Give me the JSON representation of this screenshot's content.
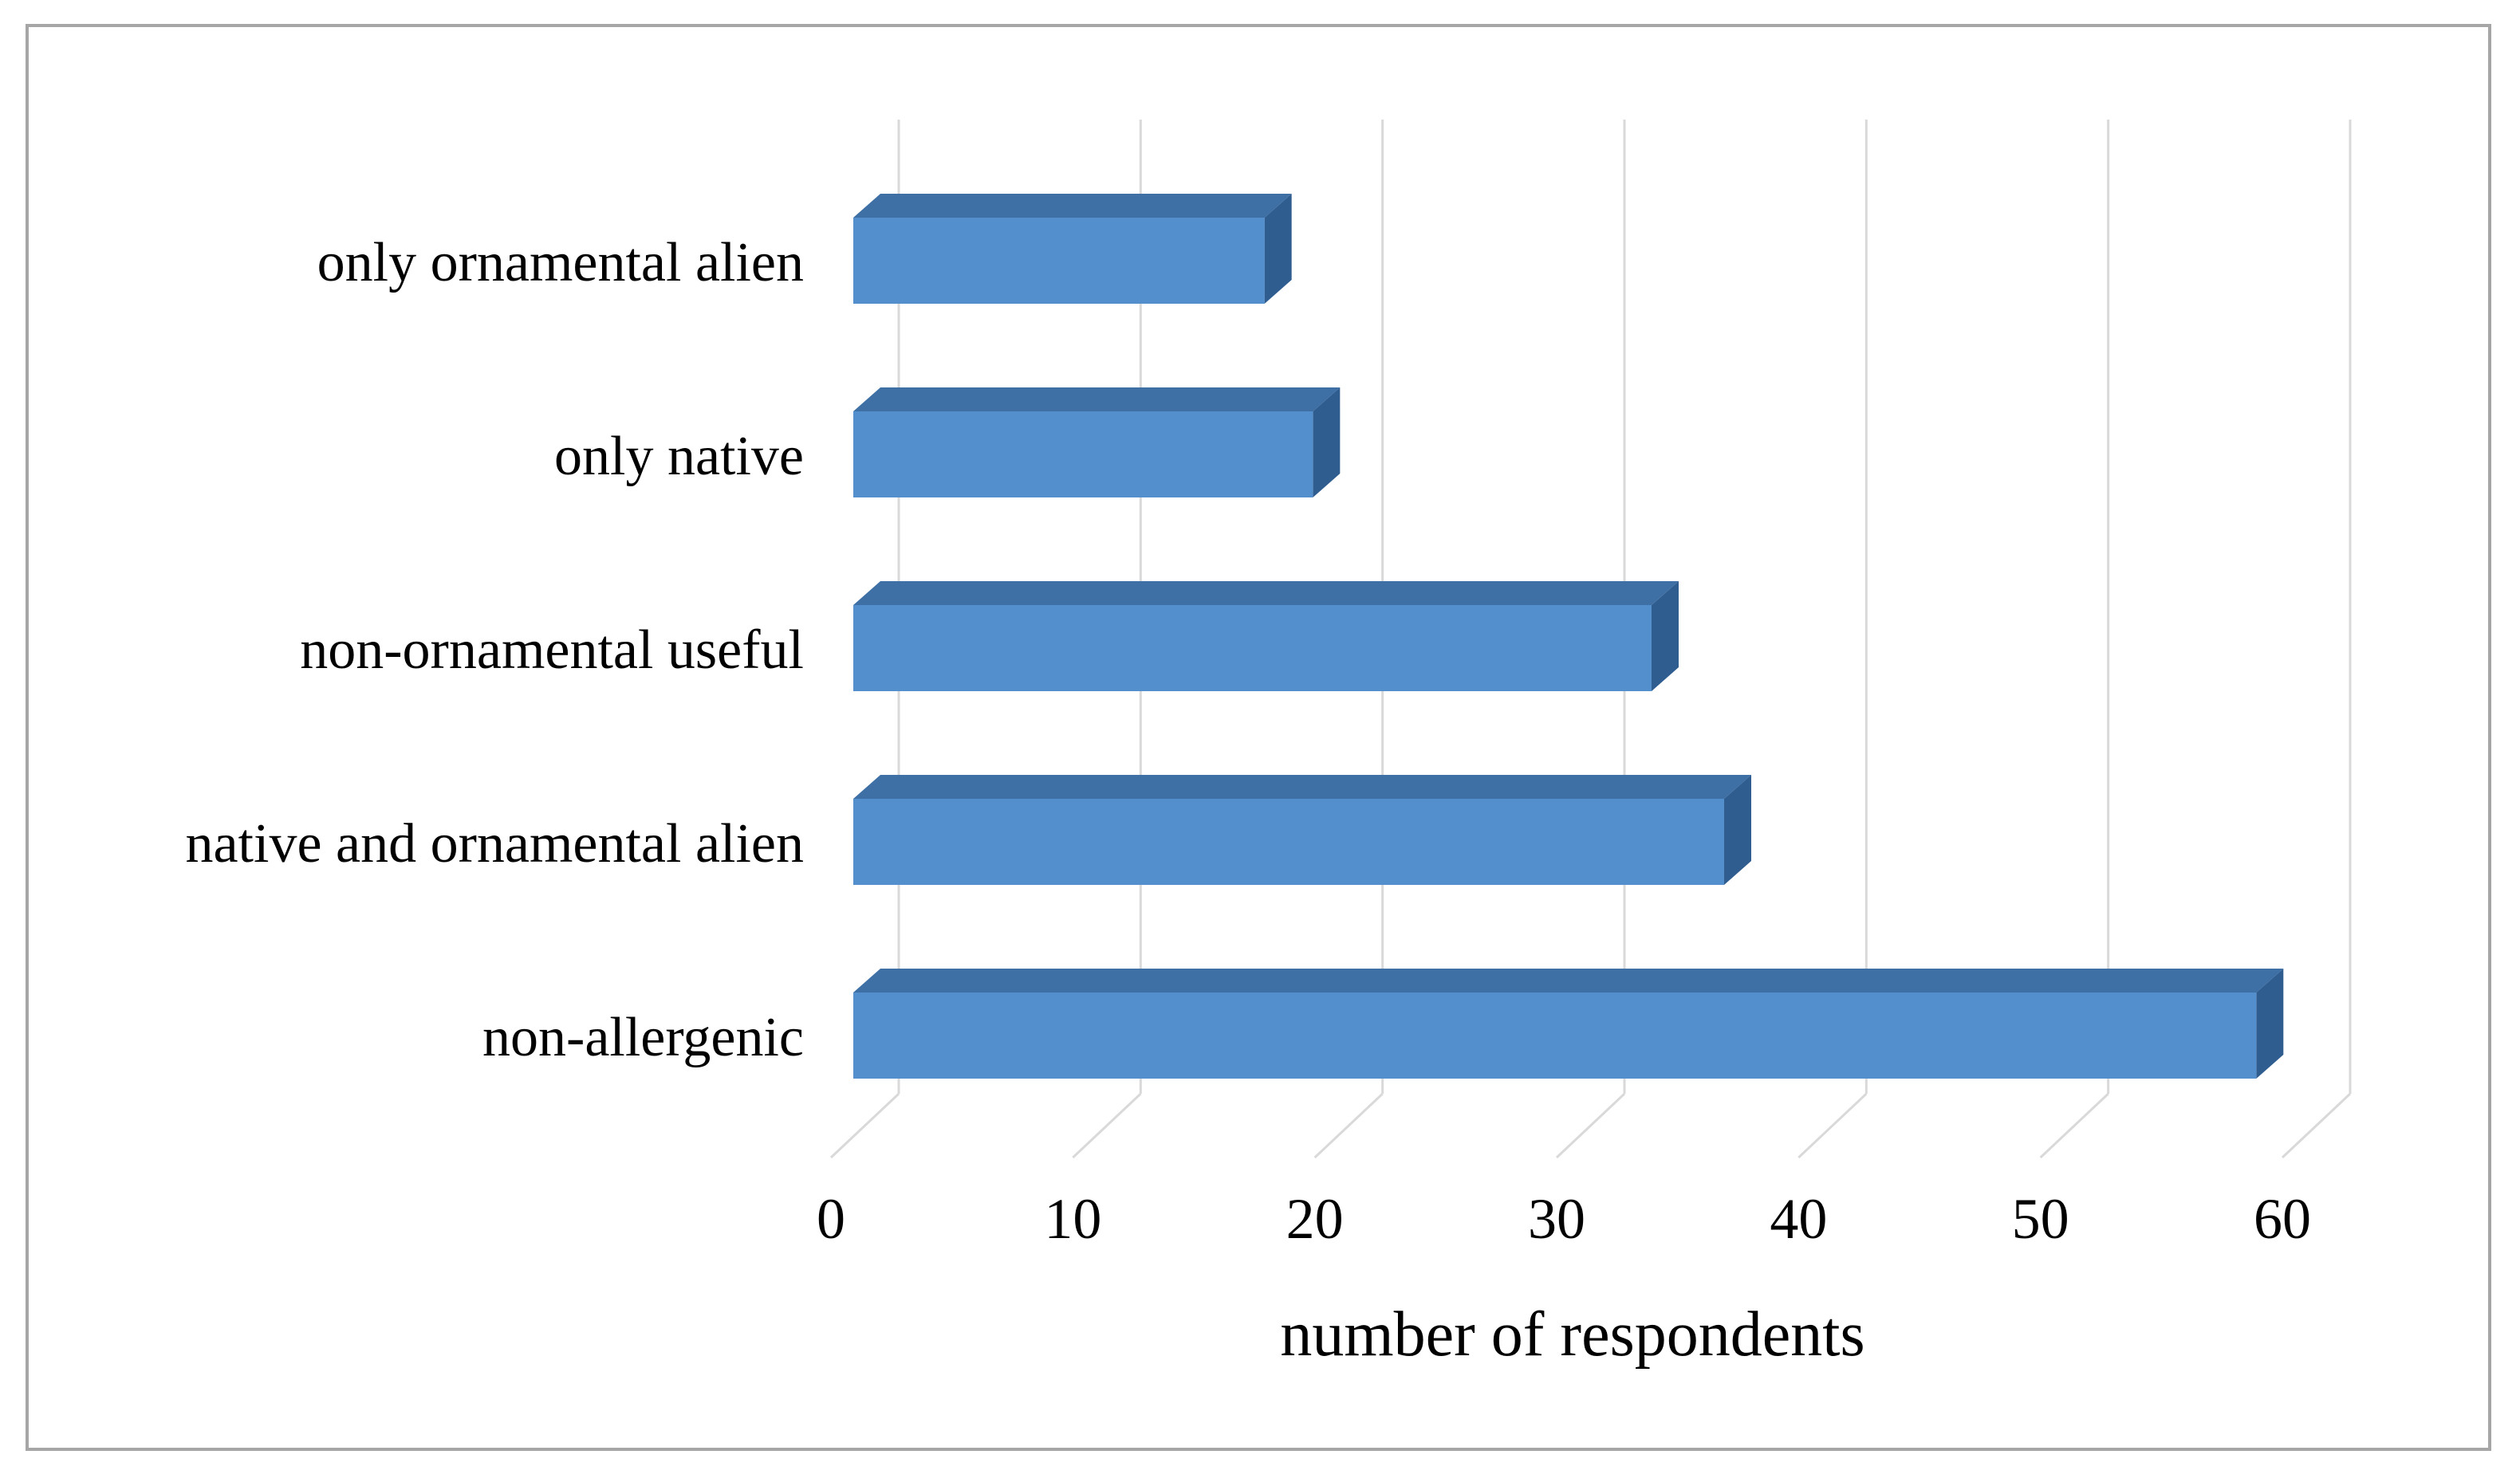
{
  "figure": {
    "frame_border_color": "#A6A6A6",
    "background_color": "#FFFFFF",
    "text_color": "#000000"
  },
  "chart_data": {
    "type": "bar",
    "orientation": "horizontal",
    "style": "3d",
    "title": "",
    "xlabel": "number of respondents",
    "ylabel": "",
    "categories": [
      "only ornamental alien",
      "only native",
      "non-ornamental useful",
      "native and ornamental alien",
      "non-allergenic"
    ],
    "values": [
      17,
      19,
      33,
      36,
      58
    ],
    "x_ticks": [
      0,
      10,
      20,
      30,
      40,
      50,
      60
    ],
    "xlim": [
      0,
      60
    ],
    "grid": "vertical-gridlines",
    "legend": false,
    "colors": {
      "bar_front": "#528FCC",
      "bar_top": "#3E70A6",
      "bar_side": "#2F5D90",
      "gridline": "#D9D9D9",
      "tick_connector": "#D9D9D9"
    }
  }
}
